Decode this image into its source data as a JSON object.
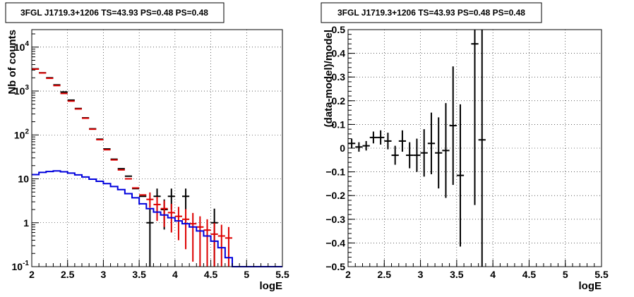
{
  "chart_data": [
    {
      "type": "histogram",
      "title": "3FGL J1719.3+1206 TS=43.93 PS=0.48 PS=0.48",
      "xlabel": "logE",
      "ylabel": "Nb of counts",
      "xlim": [
        2,
        5.5
      ],
      "ylim": [
        0.1,
        25000
      ],
      "yscale": "log",
      "grid": true,
      "xticks": [
        "2",
        "2.5",
        "3",
        "3.5",
        "4",
        "4.5",
        "5",
        "5.5"
      ],
      "yticks": [
        {
          "value": 0.1,
          "label": "10",
          "exp": "-1"
        },
        {
          "value": 1,
          "label": "1",
          "exp": ""
        },
        {
          "value": 10,
          "label": "10",
          "exp": ""
        },
        {
          "value": 100,
          "label": "10",
          "exp": "2"
        },
        {
          "value": 1000,
          "label": "10",
          "exp": "3"
        },
        {
          "value": 10000,
          "label": "10",
          "exp": "4"
        }
      ],
      "bin_width": 0.1,
      "series": [
        {
          "kind": "data_points",
          "color": "#000000",
          "x": [
            2.05,
            2.15,
            2.25,
            2.35,
            2.45,
            2.55,
            2.65,
            2.75,
            2.85,
            2.95,
            3.05,
            3.15,
            3.25,
            3.35,
            3.45,
            3.55,
            3.65,
            3.75,
            3.85,
            3.95,
            4.15,
            4.55
          ],
          "y": [
            3200,
            2600,
            2000,
            1380,
            950,
            620,
            400,
            245,
            138,
            80,
            48,
            28,
            17,
            11.5,
            6.0,
            4.0,
            1.0,
            4.0,
            2.0,
            4.0,
            4.0,
            1.0
          ],
          "err_low": [
            0,
            0,
            0,
            0,
            0,
            0,
            0,
            0,
            0,
            0,
            0,
            0,
            0,
            0,
            0,
            0,
            0.92,
            2.0,
            1.3,
            2.0,
            2.0,
            0.92
          ],
          "err_high": [
            0,
            0,
            0,
            0,
            0,
            0,
            0,
            0,
            0,
            0,
            0,
            0,
            0,
            0,
            0,
            0,
            1.1,
            2.0,
            1.4,
            2.0,
            2.0,
            1.1
          ]
        },
        {
          "kind": "model_points",
          "color": "#dd0000",
          "x": [
            2.05,
            2.15,
            2.25,
            2.35,
            2.45,
            2.55,
            2.65,
            2.75,
            2.85,
            2.95,
            3.05,
            3.15,
            3.25,
            3.35,
            3.45,
            3.55,
            3.65,
            3.75,
            3.85,
            3.95,
            4.05,
            4.15,
            4.25,
            4.35,
            4.45,
            4.55,
            4.65,
            4.75
          ],
          "y": [
            3150,
            2580,
            1950,
            1330,
            880,
            590,
            390,
            240,
            135,
            78,
            46,
            27,
            16,
            10,
            6.2,
            4.3,
            3.4,
            2.6,
            2.1,
            1.7,
            1.4,
            1.2,
            0.95,
            0.8,
            0.68,
            0.55,
            0.5,
            0.45
          ],
          "err_low": [
            0,
            0,
            0,
            0,
            0,
            0,
            0,
            0,
            0,
            0,
            0,
            0,
            0,
            0,
            0,
            0,
            1.2,
            1.5,
            1.3,
            1.1,
            1.0,
            0.95,
            0.82,
            0.72,
            0.62,
            0.5,
            0.45,
            0.38
          ],
          "err_high": [
            0,
            0,
            0,
            0,
            0,
            0,
            0,
            0,
            0,
            0,
            0,
            0,
            0,
            0,
            0,
            0,
            1.5,
            1.3,
            1.1,
            1.0,
            0.9,
            0.85,
            0.72,
            0.6,
            0.52,
            0.44,
            0.4,
            0.35
          ]
        },
        {
          "kind": "step",
          "color": "#0000dd",
          "edges": [
            2.0,
            2.1,
            2.2,
            2.3,
            2.4,
            2.5,
            2.6,
            2.7,
            2.8,
            2.9,
            3.0,
            3.1,
            3.2,
            3.3,
            3.4,
            3.5,
            3.6,
            3.7,
            3.8,
            3.9,
            4.0,
            4.1,
            4.2,
            4.3,
            4.4,
            4.5,
            4.6,
            4.7,
            4.8,
            5.5
          ],
          "values": [
            12.5,
            14,
            14.7,
            15.2,
            14.5,
            13.5,
            12.3,
            11.0,
            9.8,
            8.8,
            7.8,
            6.7,
            5.7,
            4.6,
            3.7,
            2.7,
            2.1,
            1.75,
            1.5,
            1.3,
            1.1,
            0.95,
            0.8,
            0.65,
            0.5,
            0.38,
            0.27,
            0.16,
            0.1
          ]
        }
      ]
    },
    {
      "type": "scatter",
      "title": "3FGL J1719.3+1206 TS=43.93 PS=0.48 PS=0.48",
      "xlabel": "logE",
      "ylabel": "(data-model)/model",
      "xlim": [
        2,
        5.5
      ],
      "ylim": [
        -0.5,
        0.5
      ],
      "grid": true,
      "xticks": [
        "2",
        "2.5",
        "3",
        "3.5",
        "4",
        "4.5",
        "5",
        "5.5"
      ],
      "yticks": [
        {
          "value": -0.5,
          "label": "−0.5"
        },
        {
          "value": -0.4,
          "label": "−0.4"
        },
        {
          "value": -0.3,
          "label": "−0.3"
        },
        {
          "value": -0.2,
          "label": "−0.2"
        },
        {
          "value": -0.1,
          "label": "−0.1"
        },
        {
          "value": 0,
          "label": "0"
        },
        {
          "value": 0.1,
          "label": "0.1"
        },
        {
          "value": 0.2,
          "label": "0.2"
        },
        {
          "value": 0.3,
          "label": "0.3"
        },
        {
          "value": 0.4,
          "label": "0.4"
        },
        {
          "value": 0.5,
          "label": "0.5"
        }
      ],
      "bin_width": 0.1,
      "series": [
        {
          "kind": "residual_points",
          "color": "#000000",
          "x": [
            2.05,
            2.15,
            2.25,
            2.35,
            2.45,
            2.55,
            2.65,
            2.75,
            2.85,
            2.95,
            3.05,
            3.15,
            3.25,
            3.35,
            3.45,
            3.55,
            3.75,
            3.85
          ],
          "y": [
            0.02,
            0.005,
            0.01,
            0.045,
            0.045,
            0.03,
            -0.03,
            0.03,
            -0.03,
            -0.03,
            -0.02,
            0.02,
            -0.02,
            -0.01,
            0.095,
            -0.115,
            0.44,
            0.035
          ],
          "err": [
            0.02,
            0.02,
            0.02,
            0.025,
            0.03,
            0.035,
            0.04,
            0.045,
            0.055,
            0.07,
            0.1,
            0.13,
            0.15,
            0.2,
            0.25,
            0.3,
            0.68,
            0.75
          ]
        }
      ]
    }
  ]
}
